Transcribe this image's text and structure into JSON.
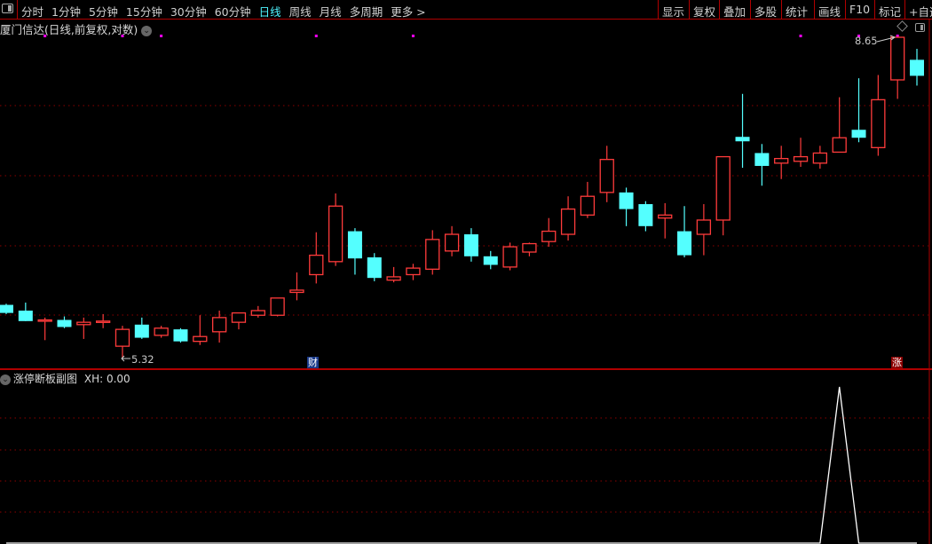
{
  "toolbar": {
    "periods": [
      "分时",
      "1分钟",
      "5分钟",
      "15分钟",
      "30分钟",
      "60分钟",
      "日线",
      "周线",
      "月线",
      "多周期",
      "更多 >"
    ],
    "active_period": "日线",
    "right_buttons": [
      "显示",
      "复权",
      "叠加",
      "多股",
      "统计",
      "画线",
      "F10",
      "标记",
      "+自选"
    ]
  },
  "main_panel": {
    "title": "厦门信达(日线,前复权,对数)",
    "high_label": "8.65",
    "low_label": "5.32",
    "badge_finance": "财",
    "badge_limit_up": "涨"
  },
  "sub_panel": {
    "title": "涨停断板副图",
    "indicator": "XH: 0.00"
  },
  "colors": {
    "up": "#ff3b3b",
    "down": "#54ffff",
    "grid": "#8b0000",
    "separator": "#b00000",
    "active": "#4ff5ff",
    "marker": "#ff00ff",
    "indicator_line": "#ffffff"
  },
  "chart_data": [
    {
      "type": "candlestick",
      "scale": "log",
      "title": "厦门信达(日线,前复权,对数)",
      "ylim": [
        5.32,
        8.65
      ],
      "grid": true,
      "annotations": [
        {
          "label": "8.65",
          "candle": 47
        },
        {
          "label": "5.32",
          "candle": 7
        }
      ],
      "markers": [
        2,
        6,
        8,
        16,
        21,
        41,
        44,
        46
      ],
      "badges": [
        {
          "label": "财",
          "candle": 17
        },
        {
          "label": "涨",
          "candle": 47
        }
      ],
      "ohlc": [
        [
          5.77,
          5.78,
          5.69,
          5.7
        ],
        [
          5.72,
          5.79,
          5.63,
          5.63
        ],
        [
          5.63,
          5.66,
          5.47,
          5.64
        ],
        [
          5.64,
          5.67,
          5.57,
          5.58
        ],
        [
          5.6,
          5.66,
          5.48,
          5.62
        ],
        [
          5.62,
          5.69,
          5.57,
          5.63
        ],
        [
          5.42,
          5.59,
          5.32,
          5.56
        ],
        [
          5.6,
          5.66,
          5.48,
          5.49
        ],
        [
          5.51,
          5.59,
          5.49,
          5.57
        ],
        [
          5.56,
          5.57,
          5.45,
          5.46
        ],
        [
          5.46,
          5.68,
          5.43,
          5.5
        ],
        [
          5.54,
          5.72,
          5.45,
          5.66
        ],
        [
          5.62,
          5.7,
          5.56,
          5.7
        ],
        [
          5.68,
          5.76,
          5.66,
          5.72
        ],
        [
          5.68,
          5.83,
          5.67,
          5.83
        ],
        [
          5.88,
          6.06,
          5.81,
          5.9
        ],
        [
          6.04,
          6.44,
          5.96,
          6.22
        ],
        [
          6.16,
          6.83,
          6.12,
          6.7
        ],
        [
          6.45,
          6.48,
          6.04,
          6.19
        ],
        [
          6.2,
          6.24,
          5.98,
          6.01
        ],
        [
          5.99,
          6.11,
          5.97,
          6.02
        ],
        [
          6.04,
          6.14,
          5.99,
          6.1
        ],
        [
          6.09,
          6.46,
          6.04,
          6.37
        ],
        [
          6.26,
          6.5,
          6.21,
          6.42
        ],
        [
          6.42,
          6.48,
          6.16,
          6.21
        ],
        [
          6.21,
          6.26,
          6.09,
          6.13
        ],
        [
          6.11,
          6.34,
          6.08,
          6.3
        ],
        [
          6.25,
          6.34,
          6.21,
          6.33
        ],
        [
          6.35,
          6.58,
          6.3,
          6.45
        ],
        [
          6.42,
          6.8,
          6.36,
          6.67
        ],
        [
          6.61,
          6.95,
          6.58,
          6.8
        ],
        [
          6.84,
          7.34,
          6.74,
          7.19
        ],
        [
          6.84,
          6.89,
          6.5,
          6.67
        ],
        [
          6.72,
          6.75,
          6.45,
          6.5
        ],
        [
          6.58,
          6.73,
          6.38,
          6.61
        ],
        [
          6.45,
          6.7,
          6.2,
          6.22
        ],
        [
          6.42,
          6.72,
          6.22,
          6.56
        ],
        [
          6.56,
          7.22,
          6.41,
          7.22
        ],
        [
          7.44,
          7.94,
          7.1,
          7.39
        ],
        [
          7.26,
          7.36,
          6.91,
          7.12
        ],
        [
          7.15,
          7.34,
          6.98,
          7.2
        ],
        [
          7.17,
          7.43,
          7.11,
          7.22
        ],
        [
          7.15,
          7.34,
          7.09,
          7.26
        ],
        [
          7.27,
          7.9,
          7.27,
          7.43
        ],
        [
          7.52,
          8.13,
          7.38,
          7.43
        ],
        [
          7.32,
          8.17,
          7.23,
          7.87
        ],
        [
          8.11,
          8.65,
          7.88,
          8.65
        ],
        [
          8.36,
          8.5,
          8.04,
          8.16
        ]
      ]
    },
    {
      "type": "line",
      "title": "涨停断板副图",
      "series": [
        {
          "name": "XH",
          "values": [
            0,
            0,
            0,
            0,
            0,
            0,
            0,
            0,
            0,
            0,
            0,
            0,
            0,
            0,
            0,
            0,
            0,
            0,
            0,
            0,
            0,
            0,
            0,
            0,
            0,
            0,
            0,
            0,
            0,
            0,
            0,
            0,
            0,
            0,
            0,
            0,
            0,
            0,
            0,
            0,
            0,
            0,
            0,
            1,
            0,
            0,
            0,
            0
          ]
        }
      ],
      "ylim": [
        0,
        1.1
      ]
    }
  ]
}
